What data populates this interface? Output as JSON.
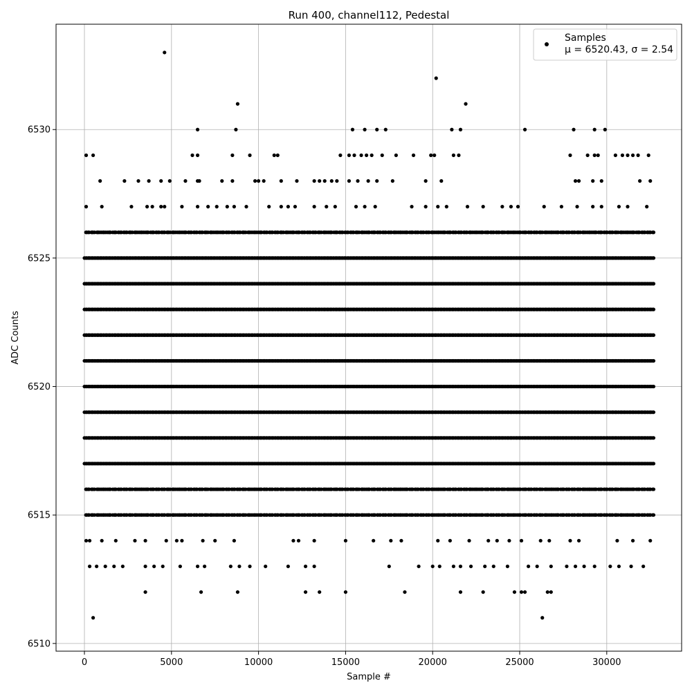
{
  "chart_data": {
    "type": "scatter",
    "title": "Run 400, channel112, Pedestal",
    "xlabel": "Sample #",
    "ylabel": "ADC Counts",
    "xlim": [
      -1630,
      34300
    ],
    "ylim": [
      6509.7,
      6534.1
    ],
    "xticks": [
      0,
      5000,
      10000,
      15000,
      20000,
      25000,
      30000
    ],
    "yticks": [
      6510,
      6515,
      6520,
      6525,
      6530
    ],
    "grid": true,
    "legend_placement": "top-right",
    "marker_color": "#000000",
    "series": [
      {
        "legend_label": "Samples",
        "legend_stats": "μ = 6520.43, σ = 2.54",
        "bands": [
          {
            "y": 6516,
            "x_start": 0,
            "x_end": 32700
          },
          {
            "y": 6517,
            "x_start": 0,
            "x_end": 32700
          },
          {
            "y": 6518,
            "x_start": 0,
            "x_end": 32700
          },
          {
            "y": 6519,
            "x_start": 0,
            "x_end": 32700
          },
          {
            "y": 6520,
            "x_start": 0,
            "x_end": 32700
          },
          {
            "y": 6521,
            "x_start": 0,
            "x_end": 32700
          },
          {
            "y": 6522,
            "x_start": 0,
            "x_end": 32700
          },
          {
            "y": 6523,
            "x_start": 0,
            "x_end": 32700
          },
          {
            "y": 6524,
            "x_start": 0,
            "x_end": 32700
          },
          {
            "y": 6525,
            "x_start": 0,
            "x_end": 32700
          },
          {
            "y": 6526,
            "x_start": 0,
            "x_end": 32700
          },
          {
            "y": 6515,
            "x_start": 0,
            "x_end": 32700
          }
        ],
        "points": [
          [
            4600,
            6533
          ],
          [
            20200,
            6532
          ],
          [
            8800,
            6531
          ],
          [
            21900,
            6531
          ],
          [
            6500,
            6530
          ],
          [
            8700,
            6530
          ],
          [
            15400,
            6530
          ],
          [
            16100,
            6530
          ],
          [
            16800,
            6530
          ],
          [
            17300,
            6530
          ],
          [
            21100,
            6530
          ],
          [
            21600,
            6530
          ],
          [
            25300,
            6530
          ],
          [
            28100,
            6530
          ],
          [
            29300,
            6530
          ],
          [
            29900,
            6530
          ],
          [
            100,
            6529
          ],
          [
            500,
            6529
          ],
          [
            6200,
            6529
          ],
          [
            6500,
            6529
          ],
          [
            8500,
            6529
          ],
          [
            9500,
            6529
          ],
          [
            10900,
            6529
          ],
          [
            11100,
            6529
          ],
          [
            14700,
            6529
          ],
          [
            15200,
            6529
          ],
          [
            15500,
            6529
          ],
          [
            15900,
            6529
          ],
          [
            16200,
            6529
          ],
          [
            16500,
            6529
          ],
          [
            17100,
            6529
          ],
          [
            17900,
            6529
          ],
          [
            18900,
            6529
          ],
          [
            19900,
            6529
          ],
          [
            20100,
            6529
          ],
          [
            21200,
            6529
          ],
          [
            21500,
            6529
          ],
          [
            27900,
            6529
          ],
          [
            28900,
            6529
          ],
          [
            29300,
            6529
          ],
          [
            29500,
            6529
          ],
          [
            30500,
            6529
          ],
          [
            30900,
            6529
          ],
          [
            31200,
            6529
          ],
          [
            31500,
            6529
          ],
          [
            31800,
            6529
          ],
          [
            32400,
            6529
          ],
          [
            900,
            6528
          ],
          [
            2300,
            6528
          ],
          [
            3100,
            6528
          ],
          [
            3700,
            6528
          ],
          [
            4400,
            6528
          ],
          [
            4900,
            6528
          ],
          [
            5800,
            6528
          ],
          [
            6500,
            6528
          ],
          [
            6600,
            6528
          ],
          [
            7900,
            6528
          ],
          [
            8500,
            6528
          ],
          [
            9800,
            6528
          ],
          [
            10000,
            6528
          ],
          [
            10300,
            6528
          ],
          [
            11300,
            6528
          ],
          [
            12200,
            6528
          ],
          [
            13200,
            6528
          ],
          [
            13500,
            6528
          ],
          [
            13800,
            6528
          ],
          [
            14200,
            6528
          ],
          [
            14500,
            6528
          ],
          [
            15200,
            6528
          ],
          [
            15700,
            6528
          ],
          [
            16300,
            6528
          ],
          [
            16800,
            6528
          ],
          [
            17700,
            6528
          ],
          [
            19600,
            6528
          ],
          [
            20500,
            6528
          ],
          [
            28200,
            6528
          ],
          [
            28400,
            6528
          ],
          [
            29200,
            6528
          ],
          [
            29700,
            6528
          ],
          [
            31900,
            6528
          ],
          [
            32500,
            6528
          ],
          [
            100,
            6527
          ],
          [
            1000,
            6527
          ],
          [
            2700,
            6527
          ],
          [
            3600,
            6527
          ],
          [
            3900,
            6527
          ],
          [
            4400,
            6527
          ],
          [
            4600,
            6527
          ],
          [
            5600,
            6527
          ],
          [
            6500,
            6527
          ],
          [
            7100,
            6527
          ],
          [
            7600,
            6527
          ],
          [
            8200,
            6527
          ],
          [
            8600,
            6527
          ],
          [
            9300,
            6527
          ],
          [
            10600,
            6527
          ],
          [
            11300,
            6527
          ],
          [
            11700,
            6527
          ],
          [
            12100,
            6527
          ],
          [
            13200,
            6527
          ],
          [
            13900,
            6527
          ],
          [
            14400,
            6527
          ],
          [
            15600,
            6527
          ],
          [
            16100,
            6527
          ],
          [
            16700,
            6527
          ],
          [
            18800,
            6527
          ],
          [
            19600,
            6527
          ],
          [
            20300,
            6527
          ],
          [
            20800,
            6527
          ],
          [
            22000,
            6527
          ],
          [
            22900,
            6527
          ],
          [
            24000,
            6527
          ],
          [
            24500,
            6527
          ],
          [
            24900,
            6527
          ],
          [
            26400,
            6527
          ],
          [
            27400,
            6527
          ],
          [
            28300,
            6527
          ],
          [
            29200,
            6527
          ],
          [
            29700,
            6527
          ],
          [
            30700,
            6527
          ],
          [
            31200,
            6527
          ],
          [
            32300,
            6527
          ],
          [
            100,
            6514
          ],
          [
            300,
            6514
          ],
          [
            1000,
            6514
          ],
          [
            1800,
            6514
          ],
          [
            2900,
            6514
          ],
          [
            3500,
            6514
          ],
          [
            4700,
            6514
          ],
          [
            5300,
            6514
          ],
          [
            5600,
            6514
          ],
          [
            6800,
            6514
          ],
          [
            7500,
            6514
          ],
          [
            8600,
            6514
          ],
          [
            12000,
            6514
          ],
          [
            12300,
            6514
          ],
          [
            13200,
            6514
          ],
          [
            15000,
            6514
          ],
          [
            16600,
            6514
          ],
          [
            17600,
            6514
          ],
          [
            18200,
            6514
          ],
          [
            20300,
            6514
          ],
          [
            21000,
            6514
          ],
          [
            22100,
            6514
          ],
          [
            23200,
            6514
          ],
          [
            23700,
            6514
          ],
          [
            24400,
            6514
          ],
          [
            25100,
            6514
          ],
          [
            26200,
            6514
          ],
          [
            26700,
            6514
          ],
          [
            27900,
            6514
          ],
          [
            28400,
            6514
          ],
          [
            30600,
            6514
          ],
          [
            31500,
            6514
          ],
          [
            32500,
            6514
          ],
          [
            300,
            6513
          ],
          [
            700,
            6513
          ],
          [
            1200,
            6513
          ],
          [
            1700,
            6513
          ],
          [
            2200,
            6513
          ],
          [
            3500,
            6513
          ],
          [
            4000,
            6513
          ],
          [
            4500,
            6513
          ],
          [
            5500,
            6513
          ],
          [
            6500,
            6513
          ],
          [
            6900,
            6513
          ],
          [
            8400,
            6513
          ],
          [
            8900,
            6513
          ],
          [
            9500,
            6513
          ],
          [
            10400,
            6513
          ],
          [
            11700,
            6513
          ],
          [
            12700,
            6513
          ],
          [
            13200,
            6513
          ],
          [
            17500,
            6513
          ],
          [
            19200,
            6513
          ],
          [
            20000,
            6513
          ],
          [
            20400,
            6513
          ],
          [
            21200,
            6513
          ],
          [
            21600,
            6513
          ],
          [
            22200,
            6513
          ],
          [
            23000,
            6513
          ],
          [
            23500,
            6513
          ],
          [
            24300,
            6513
          ],
          [
            25500,
            6513
          ],
          [
            26000,
            6513
          ],
          [
            26800,
            6513
          ],
          [
            27700,
            6513
          ],
          [
            28200,
            6513
          ],
          [
            28700,
            6513
          ],
          [
            29300,
            6513
          ],
          [
            30200,
            6513
          ],
          [
            30700,
            6513
          ],
          [
            31400,
            6513
          ],
          [
            32100,
            6513
          ],
          [
            3500,
            6512
          ],
          [
            6700,
            6512
          ],
          [
            8800,
            6512
          ],
          [
            12700,
            6512
          ],
          [
            13500,
            6512
          ],
          [
            15000,
            6512
          ],
          [
            18400,
            6512
          ],
          [
            21600,
            6512
          ],
          [
            22900,
            6512
          ],
          [
            24700,
            6512
          ],
          [
            25100,
            6512
          ],
          [
            25300,
            6512
          ],
          [
            26600,
            6512
          ],
          [
            26800,
            6512
          ],
          [
            500,
            6511
          ],
          [
            26300,
            6511
          ]
        ]
      }
    ]
  }
}
